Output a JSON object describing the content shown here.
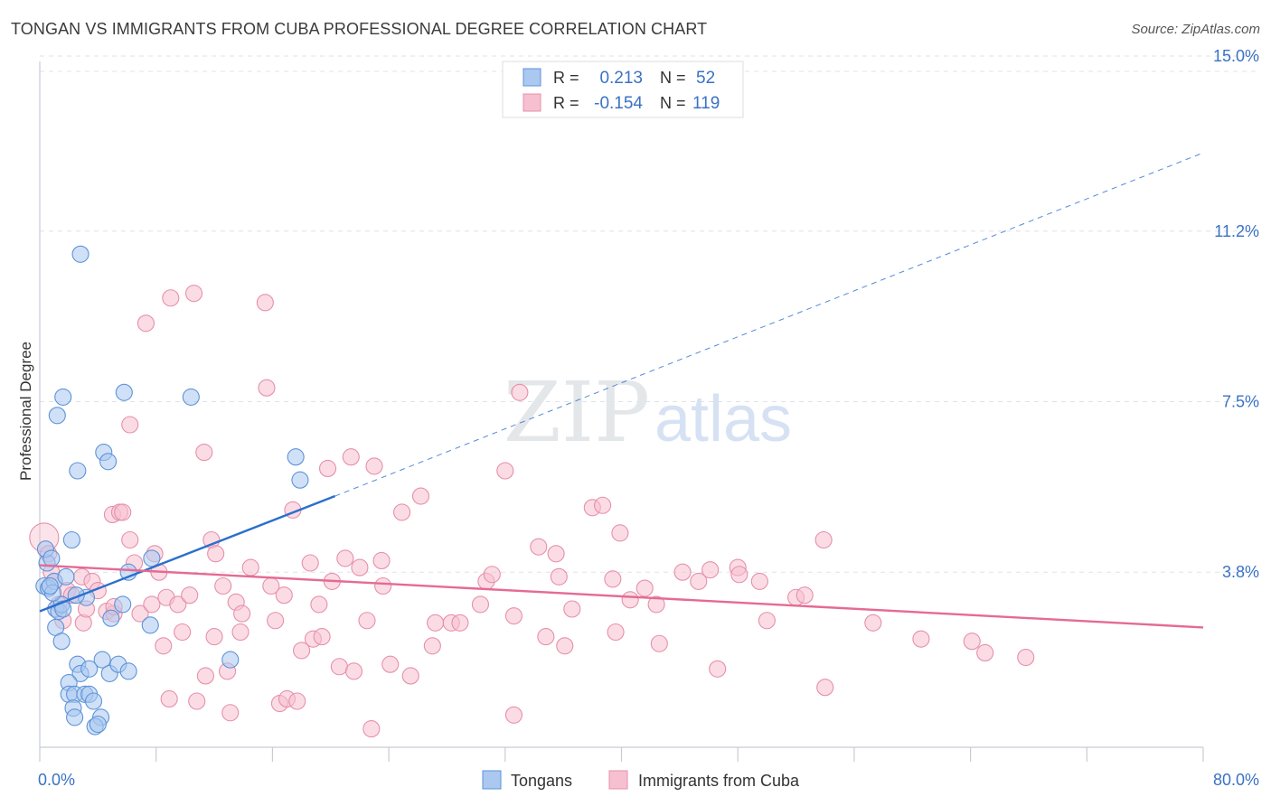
{
  "header": {
    "title": "TONGAN VS IMMIGRANTS FROM CUBA PROFESSIONAL DEGREE CORRELATION CHART",
    "source": "Source: ZipAtlas.com"
  },
  "watermark": {
    "zip": "ZIP",
    "atlas": "atlas"
  },
  "colors": {
    "blue_fill": "#aac8f0",
    "blue_stroke": "#5e93d8",
    "blue_line": "#2a6fcc",
    "pink_fill": "#f7c0d0",
    "pink_stroke": "#e690ab",
    "pink_line": "#e56a94",
    "value_text": "#3a72c4",
    "grid": "#dde3ea"
  },
  "legend_box": {
    "rows": [
      {
        "r_label": "R =",
        "r_value": "0.213",
        "n_label": "N =",
        "n_value": "52",
        "series": "blue"
      },
      {
        "r_label": "R =",
        "r_value": "-0.154",
        "n_label": "N =",
        "n_value": "119",
        "series": "pink"
      }
    ]
  },
  "chart_data": {
    "type": "scatter",
    "title": "TONGAN VS IMMIGRANTS FROM CUBA PROFESSIONAL DEGREE CORRELATION CHART",
    "xlabel": "",
    "ylabel": "Professional Degree",
    "xlim": [
      0,
      80
    ],
    "ylim": [
      0,
      15.5
    ],
    "x_tick_labels": [
      "0.0%",
      "80.0%"
    ],
    "y_ticks": [
      3.8,
      7.5,
      11.2,
      15.0
    ],
    "y_tick_labels": [
      "3.8%",
      "7.5%",
      "11.2%",
      "15.0%"
    ],
    "legend": [
      "Tongans",
      "Immigrants from Cuba"
    ],
    "series": [
      {
        "name": "Tongans",
        "color": "blue",
        "r": 0.213,
        "n": 52,
        "trend": {
          "x": [
            0,
            20.3
          ],
          "y": [
            2.95,
            5.45
          ]
        },
        "trend_extension": {
          "x": [
            20.3,
            80
          ],
          "y": [
            5.45,
            12.9
          ]
        },
        "points": [
          [
            0.3,
            3.5
          ],
          [
            0.5,
            4.0
          ],
          [
            0.4,
            4.3
          ],
          [
            0.6,
            3.45
          ],
          [
            0.8,
            4.1
          ],
          [
            1.0,
            3.6
          ],
          [
            1.1,
            3.0
          ],
          [
            1.3,
            2.95
          ],
          [
            1.5,
            3.1
          ],
          [
            1.6,
            3.0
          ],
          [
            1.1,
            2.6
          ],
          [
            1.5,
            2.3
          ],
          [
            1.8,
            3.7
          ],
          [
            2.2,
            4.5
          ],
          [
            1.2,
            7.2
          ],
          [
            1.6,
            7.6
          ],
          [
            2.6,
            6.0
          ],
          [
            2.8,
            10.7
          ],
          [
            4.4,
            6.4
          ],
          [
            4.7,
            6.2
          ],
          [
            5.8,
            7.7
          ],
          [
            6.1,
            3.8
          ],
          [
            7.7,
            4.1
          ],
          [
            7.6,
            2.65
          ],
          [
            4.9,
            2.8
          ],
          [
            2.6,
            1.8
          ],
          [
            2.8,
            1.6
          ],
          [
            3.4,
            1.7
          ],
          [
            4.3,
            1.9
          ],
          [
            4.8,
            1.6
          ],
          [
            5.4,
            1.8
          ],
          [
            6.1,
            1.65
          ],
          [
            2.0,
            1.4
          ],
          [
            2.0,
            1.15
          ],
          [
            2.4,
            1.15
          ],
          [
            3.1,
            1.15
          ],
          [
            3.4,
            1.15
          ],
          [
            3.7,
            1.0
          ],
          [
            2.3,
            0.85
          ],
          [
            2.4,
            0.65
          ],
          [
            4.2,
            0.65
          ],
          [
            3.8,
            0.45
          ],
          [
            4.0,
            0.5
          ],
          [
            10.4,
            7.6
          ],
          [
            13.1,
            1.9
          ],
          [
            17.6,
            6.3
          ],
          [
            17.9,
            5.8
          ],
          [
            5.7,
            3.1
          ],
          [
            3.2,
            3.25
          ],
          [
            0.9,
            3.35
          ],
          [
            0.7,
            3.5
          ],
          [
            2.5,
            3.3
          ]
        ]
      },
      {
        "name": "Immigrants from Cuba",
        "color": "pink",
        "r": -0.154,
        "n": 119,
        "trend": {
          "x": [
            0,
            80
          ],
          "y": [
            3.95,
            2.6
          ]
        },
        "points": [
          [
            0.3,
            4.55
          ],
          [
            0.6,
            4.2
          ],
          [
            0.8,
            3.8
          ],
          [
            1.0,
            3.6
          ],
          [
            1.3,
            3.1
          ],
          [
            1.6,
            2.75
          ],
          [
            1.9,
            3.4
          ],
          [
            2.2,
            3.3
          ],
          [
            2.9,
            3.7
          ],
          [
            3.0,
            2.7
          ],
          [
            3.2,
            3.0
          ],
          [
            3.6,
            3.6
          ],
          [
            4.0,
            3.4
          ],
          [
            4.6,
            2.95
          ],
          [
            5.0,
            5.05
          ],
          [
            5.1,
            2.9
          ],
          [
            5.5,
            5.1
          ],
          [
            5.7,
            5.1
          ],
          [
            5.1,
            3.05
          ],
          [
            6.2,
            7.0
          ],
          [
            6.2,
            4.5
          ],
          [
            6.5,
            4.0
          ],
          [
            6.9,
            2.9
          ],
          [
            7.3,
            9.2
          ],
          [
            7.7,
            3.1
          ],
          [
            7.9,
            4.2
          ],
          [
            8.2,
            3.8
          ],
          [
            8.5,
            2.2
          ],
          [
            8.7,
            3.25
          ],
          [
            8.9,
            1.05
          ],
          [
            9.0,
            9.75
          ],
          [
            9.5,
            3.1
          ],
          [
            9.8,
            2.5
          ],
          [
            10.3,
            3.3
          ],
          [
            10.6,
            9.85
          ],
          [
            10.8,
            1.0
          ],
          [
            11.3,
            6.4
          ],
          [
            11.4,
            1.55
          ],
          [
            11.8,
            4.5
          ],
          [
            12.0,
            2.4
          ],
          [
            12.1,
            4.2
          ],
          [
            12.6,
            3.5
          ],
          [
            12.9,
            1.65
          ],
          [
            13.1,
            0.75
          ],
          [
            13.5,
            3.15
          ],
          [
            13.8,
            2.5
          ],
          [
            13.9,
            2.9
          ],
          [
            14.5,
            3.9
          ],
          [
            15.6,
            7.8
          ],
          [
            15.5,
            9.65
          ],
          [
            15.9,
            3.5
          ],
          [
            16.2,
            2.75
          ],
          [
            16.5,
            0.95
          ],
          [
            16.8,
            3.3
          ],
          [
            17.0,
            1.05
          ],
          [
            17.4,
            5.15
          ],
          [
            17.7,
            1.0
          ],
          [
            18.0,
            2.1
          ],
          [
            18.6,
            4.0
          ],
          [
            18.8,
            2.35
          ],
          [
            19.2,
            3.1
          ],
          [
            19.4,
            2.4
          ],
          [
            19.8,
            6.05
          ],
          [
            20.1,
            3.6
          ],
          [
            20.6,
            1.75
          ],
          [
            21.0,
            4.1
          ],
          [
            21.4,
            6.3
          ],
          [
            21.6,
            1.65
          ],
          [
            22.0,
            3.9
          ],
          [
            22.5,
            2.75
          ],
          [
            22.8,
            0.4
          ],
          [
            23.0,
            6.1
          ],
          [
            23.5,
            4.05
          ],
          [
            23.6,
            3.5
          ],
          [
            24.1,
            1.8
          ],
          [
            24.9,
            5.1
          ],
          [
            25.5,
            1.55
          ],
          [
            26.2,
            5.45
          ],
          [
            27.0,
            2.2
          ],
          [
            27.2,
            2.7
          ],
          [
            28.3,
            2.7
          ],
          [
            28.9,
            2.7
          ],
          [
            30.3,
            3.1
          ],
          [
            30.7,
            3.6
          ],
          [
            31.1,
            3.75
          ],
          [
            32.0,
            6.0
          ],
          [
            32.6,
            2.85
          ],
          [
            33.0,
            7.7
          ],
          [
            32.6,
            0.7
          ],
          [
            34.3,
            4.35
          ],
          [
            34.8,
            2.4
          ],
          [
            35.5,
            4.2
          ],
          [
            35.7,
            3.7
          ],
          [
            36.1,
            2.2
          ],
          [
            36.6,
            3.0
          ],
          [
            38.0,
            5.2
          ],
          [
            38.7,
            5.25
          ],
          [
            39.4,
            3.65
          ],
          [
            39.6,
            2.5
          ],
          [
            39.9,
            4.65
          ],
          [
            40.6,
            3.2
          ],
          [
            41.6,
            3.45
          ],
          [
            42.4,
            3.1
          ],
          [
            42.6,
            2.25
          ],
          [
            44.2,
            3.8
          ],
          [
            45.3,
            3.6
          ],
          [
            46.1,
            3.85
          ],
          [
            46.6,
            1.7
          ],
          [
            48.0,
            3.9
          ],
          [
            48.1,
            3.75
          ],
          [
            49.5,
            3.6
          ],
          [
            50.0,
            2.75
          ],
          [
            52.0,
            3.25
          ],
          [
            52.6,
            3.3
          ],
          [
            53.9,
            4.5
          ],
          [
            54.0,
            1.3
          ],
          [
            57.3,
            2.7
          ],
          [
            60.6,
            2.35
          ],
          [
            64.1,
            2.3
          ],
          [
            65.0,
            2.05
          ],
          [
            67.8,
            1.95
          ]
        ]
      }
    ]
  }
}
